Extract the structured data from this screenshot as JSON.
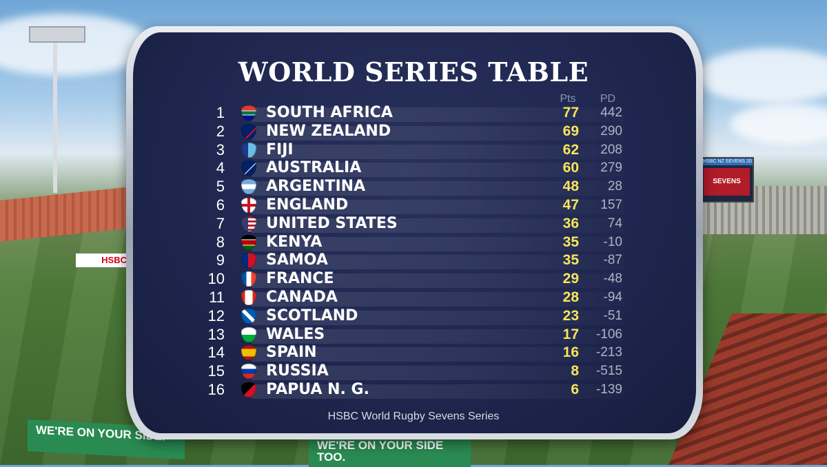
{
  "title": "WORLD SERIES TABLE",
  "columns": {
    "pts": "Pts",
    "pd": "PD"
  },
  "standings": [
    {
      "rank": "1",
      "team": "SOUTH AFRICA",
      "pts": "77",
      "pd": "442",
      "flag": "south-africa"
    },
    {
      "rank": "2",
      "team": "NEW ZEALAND",
      "pts": "69",
      "pd": "290",
      "flag": "new-zealand"
    },
    {
      "rank": "3",
      "team": "FIJI",
      "pts": "62",
      "pd": "208",
      "flag": "fiji"
    },
    {
      "rank": "4",
      "team": "AUSTRALIA",
      "pts": "60",
      "pd": "279",
      "flag": "australia"
    },
    {
      "rank": "5",
      "team": "ARGENTINA",
      "pts": "48",
      "pd": "28",
      "flag": "argentina"
    },
    {
      "rank": "6",
      "team": "ENGLAND",
      "pts": "47",
      "pd": "157",
      "flag": "england"
    },
    {
      "rank": "7",
      "team": "UNITED STATES",
      "pts": "36",
      "pd": "74",
      "flag": "united-states"
    },
    {
      "rank": "8",
      "team": "KENYA",
      "pts": "35",
      "pd": "-10",
      "flag": "kenya"
    },
    {
      "rank": "9",
      "team": "SAMOA",
      "pts": "35",
      "pd": "-87",
      "flag": "samoa"
    },
    {
      "rank": "10",
      "team": "FRANCE",
      "pts": "29",
      "pd": "-48",
      "flag": "france"
    },
    {
      "rank": "11",
      "team": "CANADA",
      "pts": "28",
      "pd": "-94",
      "flag": "canada"
    },
    {
      "rank": "12",
      "team": "SCOTLAND",
      "pts": "23",
      "pd": "-51",
      "flag": "scotland"
    },
    {
      "rank": "13",
      "team": "WALES",
      "pts": "17",
      "pd": "-106",
      "flag": "wales"
    },
    {
      "rank": "14",
      "team": "SPAIN",
      "pts": "16",
      "pd": "-213",
      "flag": "spain"
    },
    {
      "rank": "15",
      "team": "RUSSIA",
      "pts": "8",
      "pd": "-515",
      "flag": "russia"
    },
    {
      "rank": "16",
      "team": "PAPUA N. G.",
      "pts": "6",
      "pd": "-139",
      "flag": "papua-new-guinea"
    }
  ],
  "footer": "HSBC World Rugby Sevens Series",
  "background": {
    "banner_left": "WE'RE ON YOUR SIDE.",
    "banner_right": "WE'RE ON YOUR SIDE TOO.",
    "pitch_sign": "HSBC",
    "scoreboard_top": "HSBC NZ SEVENS 2018",
    "scoreboard_body": "SEVENS"
  },
  "colors": {
    "panel": "#1f2750",
    "points": "#f7e55a",
    "point_difference": "#aeb4c5",
    "text": "#ffffff"
  }
}
